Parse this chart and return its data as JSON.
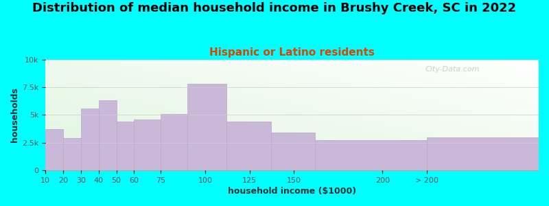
{
  "title": "Distribution of median household income in Brushy Creek, SC in 2022",
  "subtitle": "Hispanic or Latino residents",
  "xlabel": "household income ($1000)",
  "ylabel": "households",
  "background_color": "#00FFFF",
  "bar_color": "#c9b8d8",
  "bar_edge_color": "#b8a8cc",
  "categories": [
    "10",
    "20",
    "30",
    "40",
    "50",
    "60",
    "75",
    "100",
    "125",
    "150",
    "200",
    "> 200"
  ],
  "values": [
    3700,
    2900,
    5600,
    6300,
    4400,
    4600,
    5100,
    7800,
    4400,
    3400,
    2700,
    3000
  ],
  "bar_lefts": [
    10,
    20,
    30,
    40,
    50,
    60,
    75,
    90,
    112,
    137,
    162,
    225
  ],
  "bar_widths": [
    10,
    10,
    10,
    10,
    10,
    15,
    15,
    22,
    25,
    25,
    63,
    63
  ],
  "xlim": [
    10,
    288
  ],
  "ylim": [
    0,
    10000
  ],
  "yticks": [
    0,
    2500,
    5000,
    7500,
    10000
  ],
  "ytick_labels": [
    "0",
    "2.5k",
    "5k",
    "7.5k",
    "10k"
  ],
  "xtick_positions": [
    10,
    20,
    30,
    40,
    50,
    60,
    75,
    100,
    125,
    150,
    200,
    225
  ],
  "xtick_labels": [
    "10",
    "20",
    "30",
    "40",
    "50",
    "60",
    "75",
    "100",
    "125",
    "150",
    "200",
    "> 200"
  ],
  "title_fontsize": 13,
  "subtitle_fontsize": 11,
  "subtitle_color": "#dd4400",
  "watermark": "City-Data.com"
}
